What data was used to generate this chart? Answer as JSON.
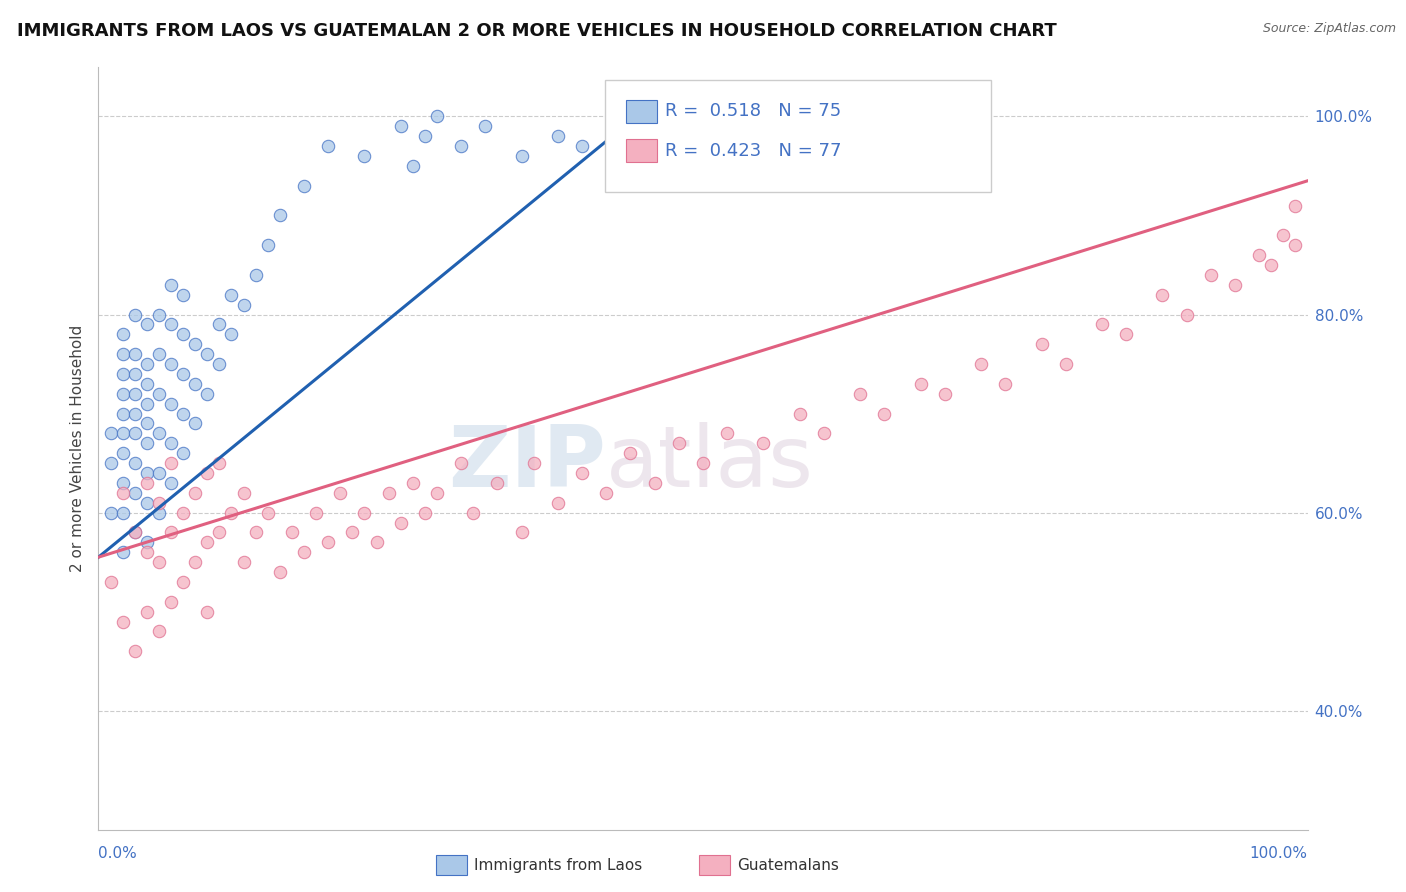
{
  "title": "IMMIGRANTS FROM LAOS VS GUATEMALAN 2 OR MORE VEHICLES IN HOUSEHOLD CORRELATION CHART",
  "source": "Source: ZipAtlas.com",
  "ylabel": "2 or more Vehicles in Household",
  "ytick_labels": [
    "40.0%",
    "60.0%",
    "80.0%",
    "100.0%"
  ],
  "ytick_vals": [
    0.4,
    0.6,
    0.8,
    1.0
  ],
  "legend_blue_R": "0.518",
  "legend_blue_N": "75",
  "legend_pink_R": "0.423",
  "legend_pink_N": "77",
  "legend_label_blue": "Immigrants from Laos",
  "legend_label_pink": "Guatemalans",
  "blue_face": "#aac8e8",
  "blue_edge": "#4472c4",
  "pink_face": "#f4b0c0",
  "pink_edge": "#e07090",
  "blue_line": "#2060b0",
  "pink_line": "#e06080",
  "R_color": "#4472c4",
  "watermark_color": "#d8e4f0",
  "watermark_color2": "#e8d8e0",
  "xlim": [
    0.0,
    1.0
  ],
  "ylim": [
    0.28,
    1.05
  ],
  "blue_x": [
    0.01,
    0.01,
    0.01,
    0.02,
    0.02,
    0.02,
    0.02,
    0.02,
    0.02,
    0.02,
    0.02,
    0.02,
    0.02,
    0.03,
    0.03,
    0.03,
    0.03,
    0.03,
    0.03,
    0.03,
    0.03,
    0.03,
    0.04,
    0.04,
    0.04,
    0.04,
    0.04,
    0.04,
    0.04,
    0.04,
    0.04,
    0.05,
    0.05,
    0.05,
    0.05,
    0.05,
    0.05,
    0.06,
    0.06,
    0.06,
    0.06,
    0.06,
    0.06,
    0.07,
    0.07,
    0.07,
    0.07,
    0.07,
    0.08,
    0.08,
    0.08,
    0.09,
    0.09,
    0.1,
    0.1,
    0.11,
    0.11,
    0.12,
    0.13,
    0.14,
    0.15,
    0.17,
    0.19,
    0.22,
    0.25,
    0.26,
    0.27,
    0.28,
    0.3,
    0.32,
    0.35,
    0.38,
    0.4,
    0.43,
    0.46
  ],
  "blue_y": [
    0.6,
    0.65,
    0.68,
    0.56,
    0.6,
    0.63,
    0.66,
    0.7,
    0.74,
    0.78,
    0.72,
    0.76,
    0.68,
    0.58,
    0.62,
    0.65,
    0.68,
    0.72,
    0.76,
    0.8,
    0.7,
    0.74,
    0.57,
    0.61,
    0.64,
    0.67,
    0.71,
    0.75,
    0.79,
    0.73,
    0.69,
    0.6,
    0.64,
    0.68,
    0.72,
    0.76,
    0.8,
    0.63,
    0.67,
    0.71,
    0.75,
    0.79,
    0.83,
    0.66,
    0.7,
    0.74,
    0.78,
    0.82,
    0.69,
    0.73,
    0.77,
    0.72,
    0.76,
    0.75,
    0.79,
    0.78,
    0.82,
    0.81,
    0.84,
    0.87,
    0.9,
    0.93,
    0.97,
    0.96,
    0.99,
    0.95,
    0.98,
    1.0,
    0.97,
    0.99,
    0.96,
    0.98,
    0.97,
    0.99,
    0.98
  ],
  "pink_x": [
    0.01,
    0.02,
    0.02,
    0.03,
    0.03,
    0.04,
    0.04,
    0.04,
    0.05,
    0.05,
    0.05,
    0.06,
    0.06,
    0.06,
    0.07,
    0.07,
    0.08,
    0.08,
    0.09,
    0.09,
    0.09,
    0.1,
    0.1,
    0.11,
    0.12,
    0.12,
    0.13,
    0.14,
    0.15,
    0.16,
    0.17,
    0.18,
    0.19,
    0.2,
    0.21,
    0.22,
    0.23,
    0.24,
    0.25,
    0.26,
    0.27,
    0.28,
    0.3,
    0.31,
    0.33,
    0.35,
    0.36,
    0.38,
    0.4,
    0.42,
    0.44,
    0.46,
    0.48,
    0.5,
    0.52,
    0.55,
    0.58,
    0.6,
    0.63,
    0.65,
    0.68,
    0.7,
    0.73,
    0.75,
    0.78,
    0.8,
    0.83,
    0.85,
    0.88,
    0.9,
    0.92,
    0.94,
    0.96,
    0.97,
    0.98,
    0.99,
    0.99
  ],
  "pink_y": [
    0.53,
    0.49,
    0.62,
    0.46,
    0.58,
    0.5,
    0.56,
    0.63,
    0.48,
    0.55,
    0.61,
    0.51,
    0.58,
    0.65,
    0.53,
    0.6,
    0.55,
    0.62,
    0.57,
    0.64,
    0.5,
    0.58,
    0.65,
    0.6,
    0.55,
    0.62,
    0.58,
    0.6,
    0.54,
    0.58,
    0.56,
    0.6,
    0.57,
    0.62,
    0.58,
    0.6,
    0.57,
    0.62,
    0.59,
    0.63,
    0.6,
    0.62,
    0.65,
    0.6,
    0.63,
    0.58,
    0.65,
    0.61,
    0.64,
    0.62,
    0.66,
    0.63,
    0.67,
    0.65,
    0.68,
    0.67,
    0.7,
    0.68,
    0.72,
    0.7,
    0.73,
    0.72,
    0.75,
    0.73,
    0.77,
    0.75,
    0.79,
    0.78,
    0.82,
    0.8,
    0.84,
    0.83,
    0.86,
    0.85,
    0.88,
    0.87,
    0.91
  ],
  "blue_trend_x": [
    0.0,
    0.455
  ],
  "blue_trend_y": [
    0.555,
    1.01
  ],
  "pink_trend_x": [
    0.0,
    1.0
  ],
  "pink_trend_y": [
    0.555,
    0.935
  ]
}
